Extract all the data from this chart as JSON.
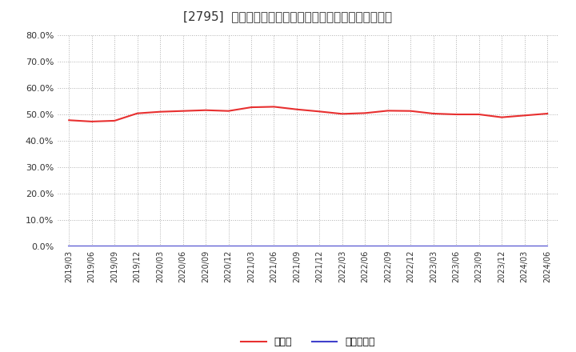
{
  "title": "[2795]  現預金、有利子負債の総資産に対する比率の推移",
  "x_labels": [
    "2019/03",
    "2019/06",
    "2019/09",
    "2019/12",
    "2020/03",
    "2020/06",
    "2020/09",
    "2020/12",
    "2021/03",
    "2021/06",
    "2021/09",
    "2021/12",
    "2022/03",
    "2022/06",
    "2022/09",
    "2022/12",
    "2023/03",
    "2023/06",
    "2023/09",
    "2023/12",
    "2024/03",
    "2024/06"
  ],
  "cash_values": [
    0.478,
    0.473,
    0.476,
    0.504,
    0.51,
    0.513,
    0.516,
    0.513,
    0.527,
    0.529,
    0.519,
    0.511,
    0.502,
    0.505,
    0.514,
    0.513,
    0.503,
    0.5,
    0.5,
    0.489,
    0.496,
    0.503
  ],
  "debt_values": [
    0.0,
    0.0,
    0.0,
    0.0,
    0.0,
    0.0,
    0.0,
    0.0,
    0.0,
    0.0,
    0.0,
    0.0,
    0.0,
    0.0,
    0.0,
    0.0,
    0.0,
    0.0,
    0.0,
    0.0,
    0.0,
    0.0
  ],
  "cash_color": "#e83030",
  "debt_color": "#4040cc",
  "legend_cash": "現預金",
  "legend_debt": "有利子負債",
  "ylim": [
    0.0,
    0.8
  ],
  "yticks": [
    0.0,
    0.1,
    0.2,
    0.3,
    0.4,
    0.5,
    0.6,
    0.7,
    0.8
  ],
  "background_color": "#ffffff",
  "grid_color": "#b0b0b0",
  "title_color": "#333333",
  "title_fontsize": 11
}
